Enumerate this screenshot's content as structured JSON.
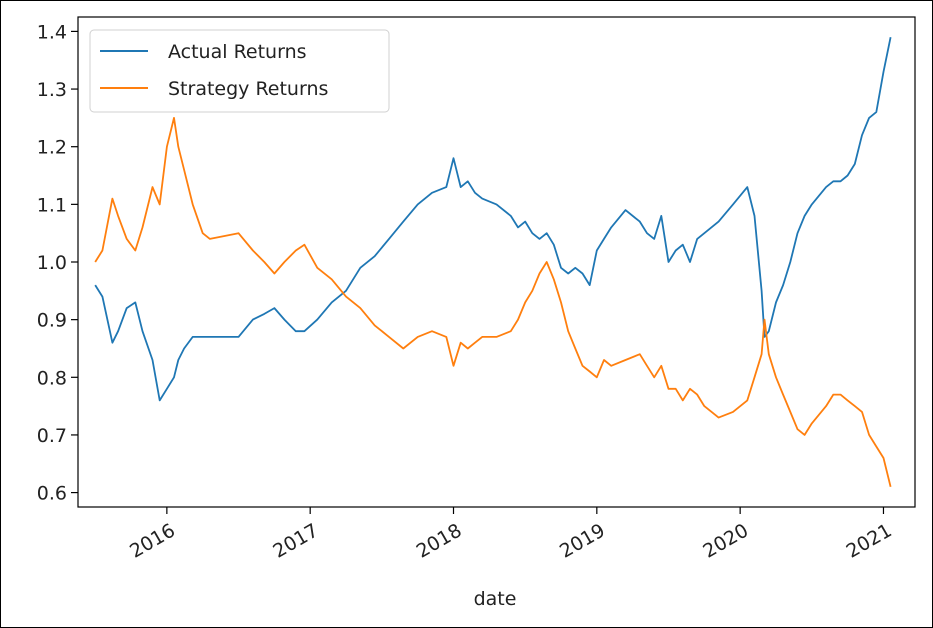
{
  "chart_data": {
    "type": "line",
    "xlabel": "date",
    "ylabel": "",
    "xlim": [
      2015.38,
      2021.22
    ],
    "ylim": [
      0.575,
      1.425
    ],
    "x_ticks": [
      "2016",
      "2017",
      "2018",
      "2019",
      "2020",
      "2021"
    ],
    "y_ticks": [
      "0.6",
      "0.7",
      "0.8",
      "0.9",
      "1.0",
      "1.1",
      "1.2",
      "1.3",
      "1.4"
    ],
    "legend_position": "top-left",
    "grid": false,
    "series": [
      {
        "name": "Actual Returns",
        "color": "#1f77b4",
        "x": [
          2015.5,
          2015.55,
          2015.62,
          2015.66,
          2015.72,
          2015.78,
          2015.83,
          2015.9,
          2015.95,
          2016.0,
          2016.05,
          2016.08,
          2016.12,
          2016.18,
          2016.25,
          2016.3,
          2016.5,
          2016.6,
          2016.68,
          2016.75,
          2016.82,
          2016.9,
          2016.96,
          2017.05,
          2017.15,
          2017.25,
          2017.35,
          2017.45,
          2017.55,
          2017.65,
          2017.75,
          2017.85,
          2017.95,
          2018.0,
          2018.05,
          2018.1,
          2018.15,
          2018.2,
          2018.3,
          2018.4,
          2018.45,
          2018.5,
          2018.55,
          2018.6,
          2018.65,
          2018.7,
          2018.75,
          2018.8,
          2018.85,
          2018.9,
          2018.95,
          2019.0,
          2019.05,
          2019.1,
          2019.2,
          2019.3,
          2019.35,
          2019.4,
          2019.45,
          2019.5,
          2019.55,
          2019.6,
          2019.65,
          2019.7,
          2019.75,
          2019.85,
          2019.95,
          2020.05,
          2020.1,
          2020.15,
          2020.17,
          2020.2,
          2020.25,
          2020.3,
          2020.35,
          2020.4,
          2020.45,
          2020.5,
          2020.6,
          2020.65,
          2020.7,
          2020.75,
          2020.8,
          2020.85,
          2020.9,
          2020.95,
          2021.0,
          2021.05
        ],
        "values": [
          0.96,
          0.94,
          0.86,
          0.88,
          0.92,
          0.93,
          0.88,
          0.83,
          0.76,
          0.78,
          0.8,
          0.83,
          0.85,
          0.87,
          0.87,
          0.87,
          0.87,
          0.9,
          0.91,
          0.92,
          0.9,
          0.88,
          0.88,
          0.9,
          0.93,
          0.95,
          0.99,
          1.01,
          1.04,
          1.07,
          1.1,
          1.12,
          1.13,
          1.18,
          1.13,
          1.14,
          1.12,
          1.11,
          1.1,
          1.08,
          1.06,
          1.07,
          1.05,
          1.04,
          1.05,
          1.03,
          0.99,
          0.98,
          0.99,
          0.98,
          0.96,
          1.02,
          1.04,
          1.06,
          1.09,
          1.07,
          1.05,
          1.04,
          1.08,
          1.0,
          1.02,
          1.03,
          1.0,
          1.04,
          1.05,
          1.07,
          1.1,
          1.13,
          1.08,
          0.95,
          0.87,
          0.88,
          0.93,
          0.96,
          1.0,
          1.05,
          1.08,
          1.1,
          1.13,
          1.14,
          1.14,
          1.15,
          1.17,
          1.22,
          1.25,
          1.26,
          1.33,
          1.39
        ]
      },
      {
        "name": "Strategy Returns",
        "color": "#ff7f0e",
        "x": [
          2015.5,
          2015.55,
          2015.62,
          2015.66,
          2015.72,
          2015.78,
          2015.83,
          2015.9,
          2015.95,
          2016.0,
          2016.05,
          2016.08,
          2016.12,
          2016.18,
          2016.25,
          2016.3,
          2016.5,
          2016.6,
          2016.68,
          2016.75,
          2016.82,
          2016.9,
          2016.96,
          2017.05,
          2017.15,
          2017.25,
          2017.35,
          2017.45,
          2017.55,
          2017.65,
          2017.75,
          2017.85,
          2017.95,
          2018.0,
          2018.05,
          2018.1,
          2018.15,
          2018.2,
          2018.3,
          2018.4,
          2018.45,
          2018.5,
          2018.55,
          2018.6,
          2018.65,
          2018.7,
          2018.75,
          2018.8,
          2018.85,
          2018.9,
          2018.95,
          2019.0,
          2019.05,
          2019.1,
          2019.2,
          2019.3,
          2019.35,
          2019.4,
          2019.45,
          2019.5,
          2019.55,
          2019.6,
          2019.65,
          2019.7,
          2019.75,
          2019.85,
          2019.95,
          2020.05,
          2020.1,
          2020.15,
          2020.17,
          2020.2,
          2020.25,
          2020.3,
          2020.35,
          2020.4,
          2020.45,
          2020.5,
          2020.6,
          2020.65,
          2020.7,
          2020.75,
          2020.8,
          2020.85,
          2020.9,
          2020.95,
          2021.0,
          2021.05
        ],
        "values": [
          1.0,
          1.02,
          1.11,
          1.08,
          1.04,
          1.02,
          1.06,
          1.13,
          1.1,
          1.2,
          1.25,
          1.2,
          1.16,
          1.1,
          1.05,
          1.04,
          1.05,
          1.02,
          1.0,
          0.98,
          1.0,
          1.02,
          1.03,
          0.99,
          0.97,
          0.94,
          0.92,
          0.89,
          0.87,
          0.85,
          0.87,
          0.88,
          0.87,
          0.82,
          0.86,
          0.85,
          0.86,
          0.87,
          0.87,
          0.88,
          0.9,
          0.93,
          0.95,
          0.98,
          1.0,
          0.97,
          0.93,
          0.88,
          0.85,
          0.82,
          0.81,
          0.8,
          0.83,
          0.82,
          0.83,
          0.84,
          0.82,
          0.8,
          0.82,
          0.78,
          0.78,
          0.76,
          0.78,
          0.77,
          0.75,
          0.73,
          0.74,
          0.76,
          0.8,
          0.84,
          0.9,
          0.84,
          0.8,
          0.77,
          0.74,
          0.71,
          0.7,
          0.72,
          0.75,
          0.77,
          0.77,
          0.76,
          0.75,
          0.74,
          0.7,
          0.68,
          0.66,
          0.61
        ]
      }
    ]
  }
}
